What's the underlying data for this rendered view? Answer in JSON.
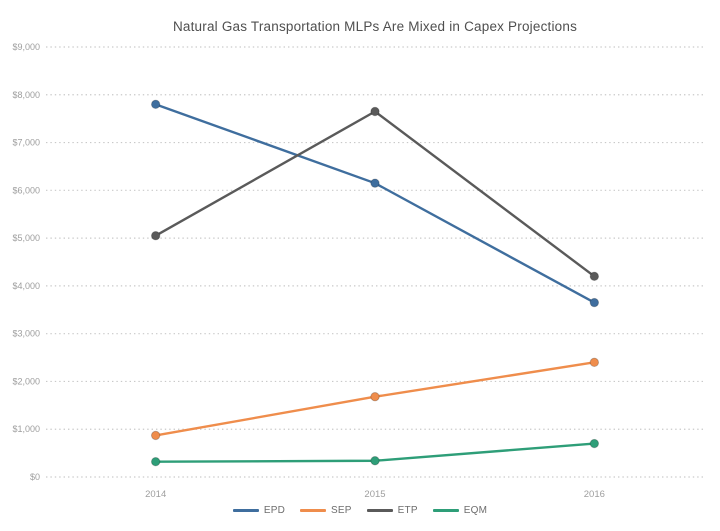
{
  "chart_data": {
    "type": "line",
    "title": "Natural Gas Transportation MLPs Are Mixed in Capex Projections",
    "x": [
      2014,
      2015,
      2016
    ],
    "x_labels": [
      "2014",
      "2015",
      "2016"
    ],
    "series": [
      {
        "name": "EPD",
        "color": "#3f6e9e",
        "values": [
          7800,
          6150,
          3650
        ]
      },
      {
        "name": "SEP",
        "color": "#ef8d4c",
        "values": [
          870,
          1680,
          2400
        ]
      },
      {
        "name": "ETP",
        "color": "#5a5a5a",
        "values": [
          5050,
          7650,
          4200
        ]
      },
      {
        "name": "EQM",
        "color": "#2e9e78",
        "values": [
          320,
          340,
          700
        ]
      }
    ],
    "ylim": [
      0,
      9000
    ],
    "ytick_step": 1000,
    "ytick_labels": [
      "$0",
      "$1,000",
      "$2,000",
      "$3,000",
      "$4,000",
      "$5,000",
      "$6,000",
      "$7,000",
      "$8,000",
      "$9,000"
    ],
    "xlabel": "",
    "ylabel": "",
    "grid": "horizontal-dotted",
    "legend_position": "bottom",
    "marker": "circle"
  }
}
